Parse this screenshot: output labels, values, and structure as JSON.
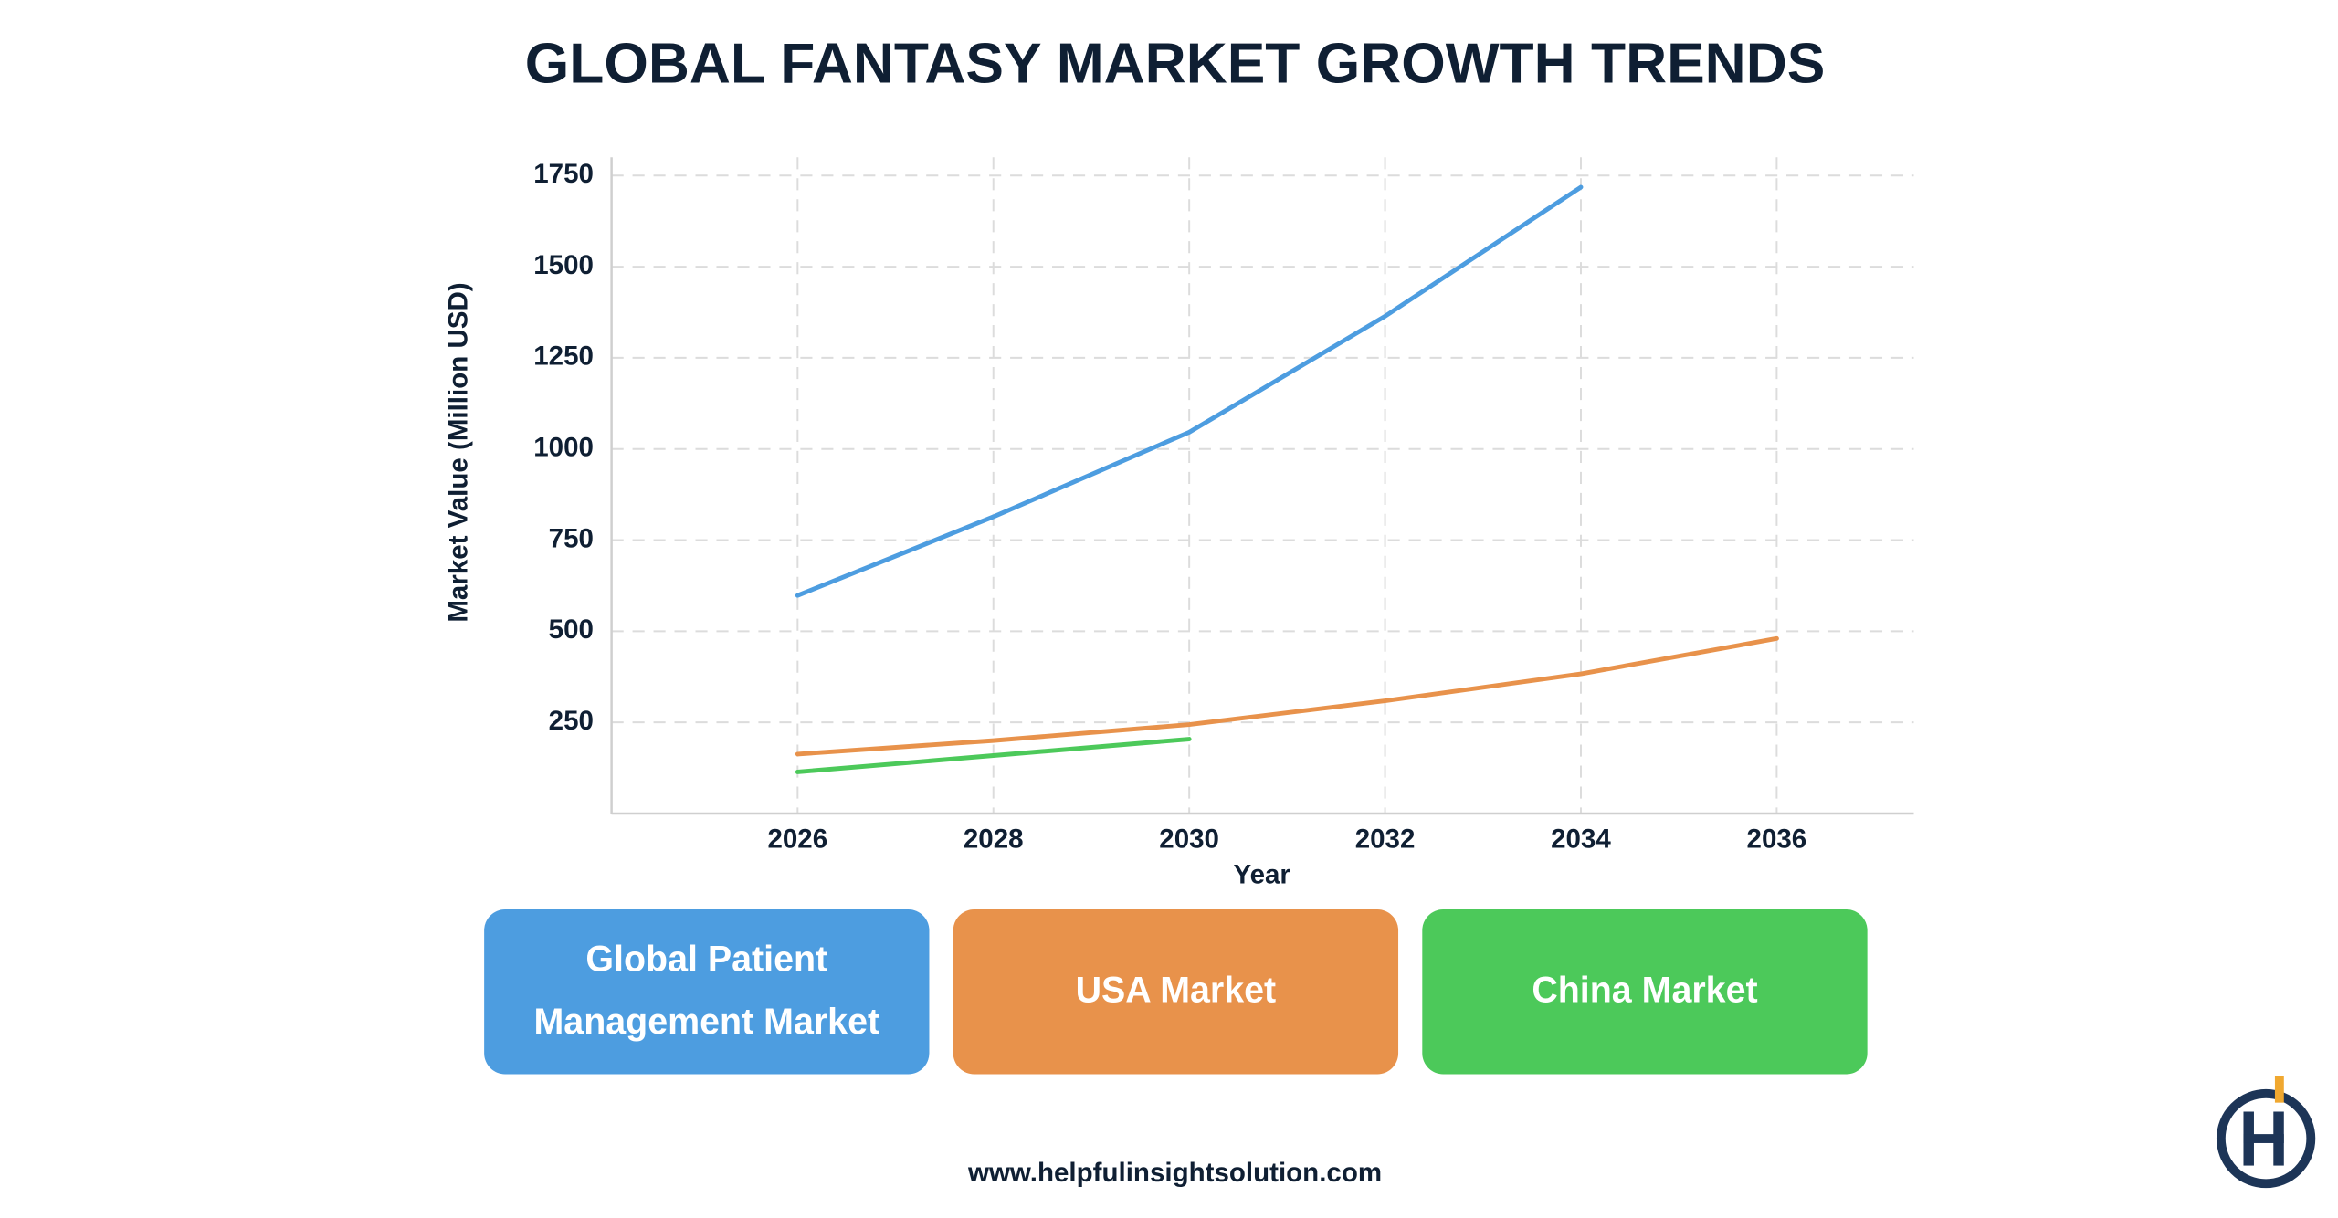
{
  "chart_data": {
    "type": "line",
    "title": "GLOBAL FANTASY MARKET GROWTH TRENDS",
    "x_label": "Year",
    "y_label": "Market Value (Million USD)",
    "x": [
      2026,
      2028,
      2030,
      2032,
      2034,
      2036
    ],
    "series": [
      {
        "name": "Global Patient Management Market",
        "color": "#4d9de0",
        "values": [
          598,
          814,
          1046,
          1364,
          1718,
          null
        ]
      },
      {
        "name": "USA Market",
        "color": "#e8924b",
        "values": [
          163,
          200,
          244,
          309,
          383,
          480
        ]
      },
      {
        "name": "China Market",
        "color": "#4cc95a",
        "values": [
          114,
          159,
          204,
          null,
          null,
          null
        ]
      }
    ],
    "xlim": [
      2024.1,
      2037.4
    ],
    "xticks": [
      2026,
      2028,
      2030,
      2032,
      2034,
      2036
    ],
    "ylim": [
      0,
      1800
    ],
    "yticks": [
      250,
      500,
      750,
      1000,
      1250,
      1500,
      1750
    ],
    "grid": true
  },
  "footer": {
    "website": "www.helpfulinsightsolution.com"
  }
}
